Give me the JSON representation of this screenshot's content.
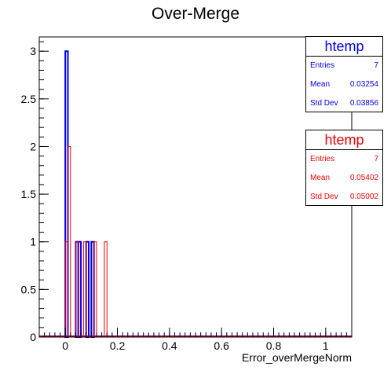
{
  "chart_data": {
    "type": "bar",
    "title": "Over-Merge",
    "xlabel": "Error_overMergeNorm",
    "ylabel": "",
    "xlim": [
      -0.1,
      1.1
    ],
    "ylim": [
      0,
      3.15
    ],
    "x_ticks": [
      "0",
      "0.2",
      "0.4",
      "0.6",
      "0.8",
      "1"
    ],
    "x_tick_values": [
      0,
      0.2,
      0.4,
      0.6,
      0.8,
      1
    ],
    "y_ticks": [
      "0",
      "0.5",
      "1",
      "1.5",
      "2",
      "2.5",
      "3"
    ],
    "y_tick_values": [
      0,
      0.5,
      1,
      1.5,
      2,
      2.5,
      3
    ],
    "grid": false,
    "legend_position": "top-right",
    "series": [
      {
        "name": "htemp",
        "color": "#0000ee",
        "bins": [
          {
            "x0": 0.0,
            "x1": 0.01,
            "value": 3
          },
          {
            "x0": 0.04,
            "x1": 0.05,
            "value": 1
          },
          {
            "x0": 0.05,
            "x1": 0.06,
            "value": 1
          },
          {
            "x0": 0.08,
            "x1": 0.09,
            "value": 1
          },
          {
            "x0": 0.1,
            "x1": 0.11,
            "value": 1
          }
        ]
      },
      {
        "name": "htemp",
        "color": "#ee0000",
        "bins": [
          {
            "x0": 0.0,
            "x1": 0.01,
            "value": 1
          },
          {
            "x0": 0.01,
            "x1": 0.02,
            "value": 2
          },
          {
            "x0": 0.04,
            "x1": 0.05,
            "value": 1
          },
          {
            "x0": 0.07,
            "x1": 0.08,
            "value": 1
          },
          {
            "x0": 0.11,
            "x1": 0.12,
            "value": 1
          },
          {
            "x0": 0.15,
            "x1": 0.16,
            "value": 1
          }
        ]
      }
    ]
  },
  "stats_boxes": [
    {
      "title": "htemp",
      "color": "#0000ee",
      "entries_label": "Entries",
      "entries": "7",
      "mean_label": "Mean",
      "mean": "0.03254",
      "std_label": "Std Dev",
      "std": "0.03856"
    },
    {
      "title": "htemp",
      "color": "#ee0000",
      "entries_label": "Entries",
      "entries": "7",
      "mean_label": "Mean",
      "mean": "0.05402",
      "std_label": "Std Dev",
      "std": "0.05002"
    }
  ]
}
